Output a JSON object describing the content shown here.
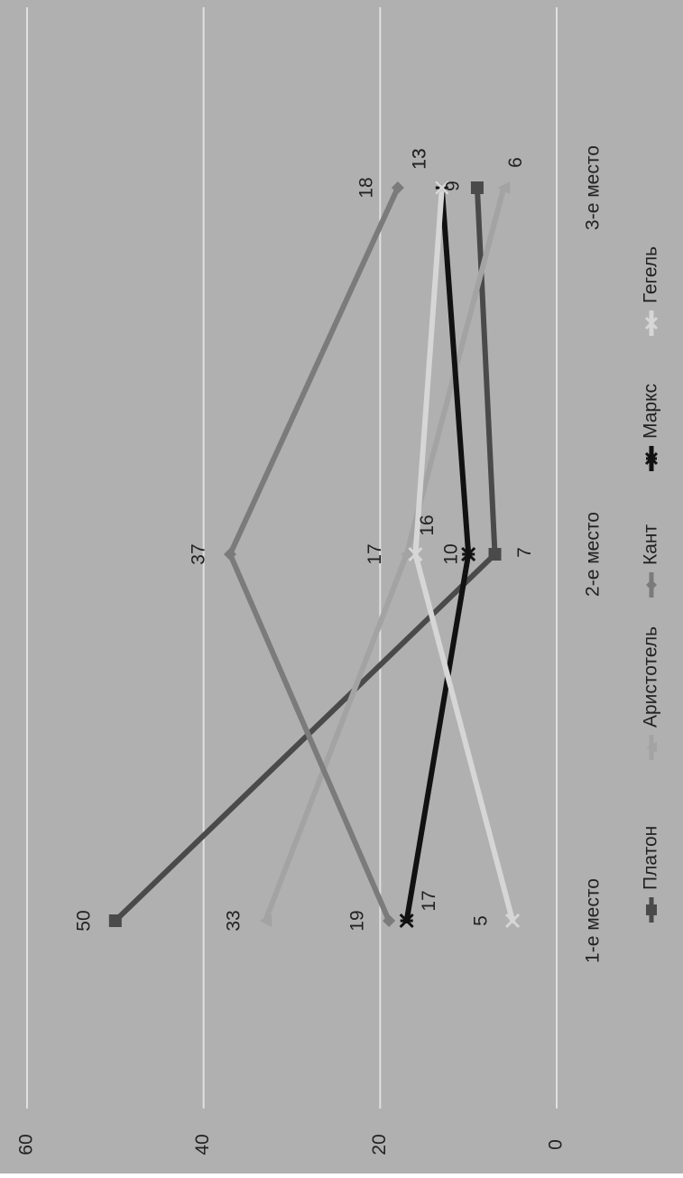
{
  "chart_data": {
    "type": "line",
    "categories": [
      "1-е место",
      "2-е место",
      "3-е место"
    ],
    "yticks": [
      "0",
      "20",
      "40",
      "60"
    ],
    "ylim": [
      0,
      60
    ],
    "grid": true,
    "legend_position": "bottom",
    "orientation": "rotated-90-clockwise",
    "colors": {
      "background": "#b0b0b0",
      "grid": "#e0e0e0",
      "text": "#222222"
    },
    "series": [
      {
        "name": "Платон",
        "values": [
          50,
          7,
          9
        ],
        "color": "#4a4a4a",
        "marker": "square"
      },
      {
        "name": "Аристотель",
        "values": [
          33,
          17,
          6
        ],
        "color": "#a3a3a3",
        "marker": "triangle"
      },
      {
        "name": "Кант",
        "values": [
          19,
          37,
          18
        ],
        "color": "#7b7b7b",
        "marker": "diamond"
      },
      {
        "name": "Маркс",
        "values": [
          17,
          10,
          13
        ],
        "color": "#111111",
        "marker": "star"
      },
      {
        "name": "Гегель",
        "values": [
          5,
          16,
          13
        ],
        "color": "#d6d6d6",
        "marker": "x"
      }
    ],
    "data_labels": [
      [
        "50",
        "7",
        "9"
      ],
      [
        "33",
        "17",
        "6"
      ],
      [
        "19",
        "37",
        "18"
      ],
      [
        "17",
        "10",
        "13"
      ],
      [
        "5",
        "16",
        "13"
      ]
    ]
  }
}
